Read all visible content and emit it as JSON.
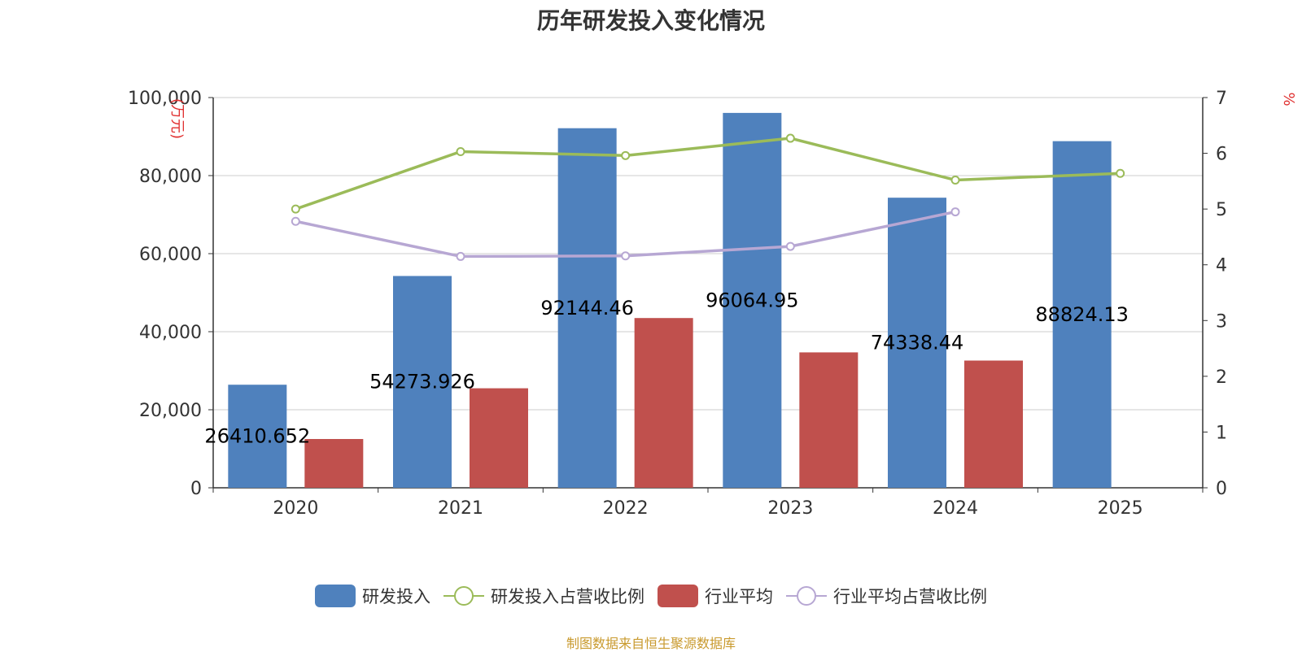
{
  "title": "历年研发投入变化情况",
  "footer": "制图数据来自恒生聚源数据库",
  "chart_data": {
    "type": "bar",
    "categories": [
      "2020",
      "2021",
      "2022",
      "2023",
      "2024",
      "2025"
    ],
    "y_left": {
      "label": "(万元)",
      "min": 0,
      "max": 100000,
      "ticks": [
        "0",
        "20,000",
        "40,000",
        "60,000",
        "80,000",
        "100,000"
      ],
      "tick_values": [
        0,
        20000,
        40000,
        60000,
        80000,
        100000
      ]
    },
    "y_right": {
      "label": "%",
      "min": 0,
      "max": 7,
      "ticks": [
        "0",
        "1",
        "2",
        "3",
        "4",
        "5",
        "6",
        "7"
      ],
      "tick_values": [
        0,
        1,
        2,
        3,
        4,
        5,
        6,
        7
      ]
    },
    "grid": true,
    "legend_position": "bottom",
    "series": [
      {
        "name": "研发投入",
        "type": "bar",
        "axis": "left",
        "color": "#4f81bd",
        "values": [
          26410.652,
          54273.926,
          92144.46,
          96064.95,
          74338.44,
          88824.13
        ],
        "labels": [
          "26410.652",
          "54273.926",
          "92144.46",
          "96064.95",
          "74338.44",
          "88824.13"
        ]
      },
      {
        "name": "研发投入占营收比例",
        "type": "line",
        "axis": "right",
        "color": "#9bbb59",
        "values": [
          5.0,
          6.03,
          5.96,
          6.27,
          5.52,
          5.64
        ]
      },
      {
        "name": "行业平均",
        "type": "bar",
        "axis": "left",
        "color": "#c0504d",
        "values": [
          12500,
          25500,
          43500,
          34700,
          32600,
          null
        ]
      },
      {
        "name": "行业平均占营收比例",
        "type": "line",
        "axis": "right",
        "color": "#b7a7d3",
        "values": [
          4.78,
          4.15,
          4.16,
          4.33,
          4.95,
          null
        ]
      }
    ]
  },
  "legend": [
    {
      "name": "研发投入",
      "kind": "bar",
      "color": "#4f81bd"
    },
    {
      "name": "研发投入占营收比例",
      "kind": "line",
      "color": "#9bbb59"
    },
    {
      "name": "行业平均",
      "kind": "bar",
      "color": "#c0504d"
    },
    {
      "name": "行业平均占营收比例",
      "kind": "line",
      "color": "#b7a7d3"
    }
  ]
}
